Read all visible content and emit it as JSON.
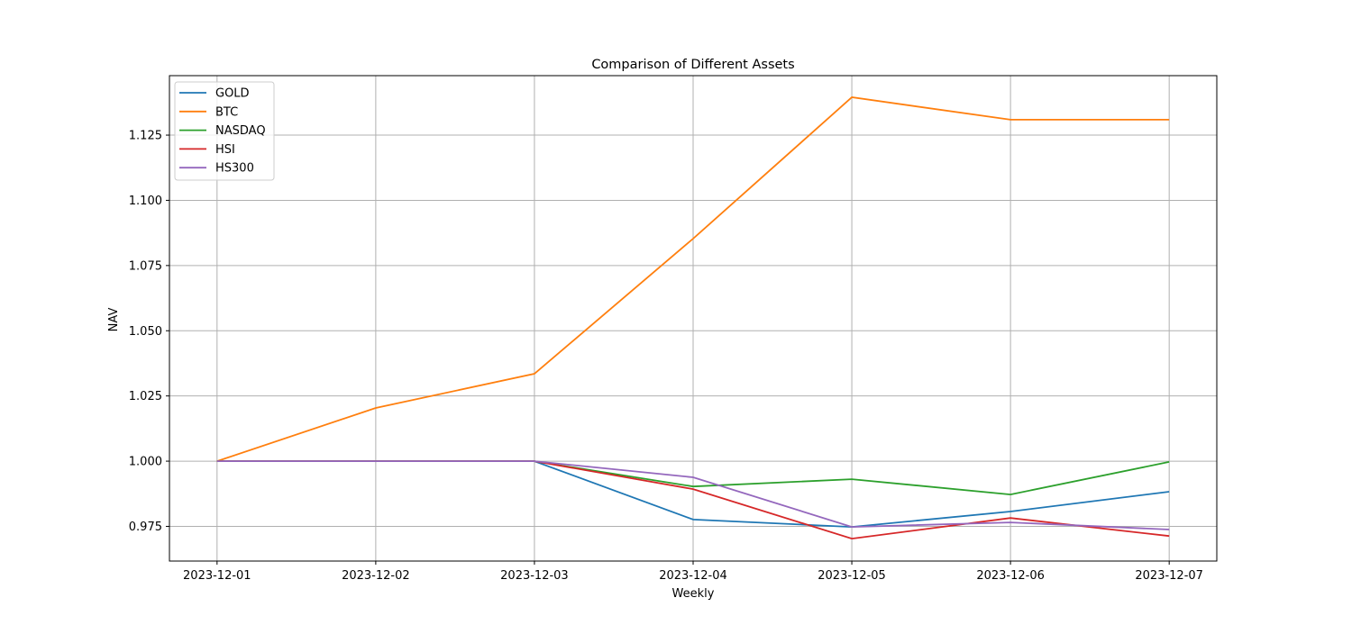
{
  "chart_data": {
    "type": "line",
    "title": "Comparison of Different Assets",
    "xlabel": "Weekly",
    "ylabel": "NAV",
    "x": [
      "2023-12-01",
      "2023-12-02",
      "2023-12-03",
      "2023-12-04",
      "2023-12-05",
      "2023-12-06",
      "2023-12-07"
    ],
    "ylim": [
      0.9617,
      1.1478
    ],
    "yticks": [
      "0.975",
      "1.000",
      "1.025",
      "1.050",
      "1.075",
      "1.100",
      "1.125"
    ],
    "grid": true,
    "legend_position": "top-left",
    "series": [
      {
        "name": "GOLD",
        "color": "#1f77b4",
        "values": [
          1.0,
          1.0,
          1.0,
          0.9776,
          0.9748,
          0.9807,
          0.9883
        ]
      },
      {
        "name": "BTC",
        "color": "#ff7f0e",
        "values": [
          1.0,
          1.0204,
          1.0335,
          1.0853,
          1.1395,
          1.1309,
          1.1309
        ]
      },
      {
        "name": "NASDAQ",
        "color": "#2ca02c",
        "values": [
          1.0,
          1.0,
          1.0,
          0.9903,
          0.9931,
          0.9872,
          0.9997
        ]
      },
      {
        "name": "HSI",
        "color": "#d62728",
        "values": [
          1.0,
          1.0,
          1.0,
          0.9893,
          0.9703,
          0.9782,
          0.9713
        ]
      },
      {
        "name": "HS300",
        "color": "#9467bd",
        "values": [
          1.0,
          1.0,
          1.0,
          0.9938,
          0.9748,
          0.9765,
          0.9738
        ]
      }
    ]
  }
}
